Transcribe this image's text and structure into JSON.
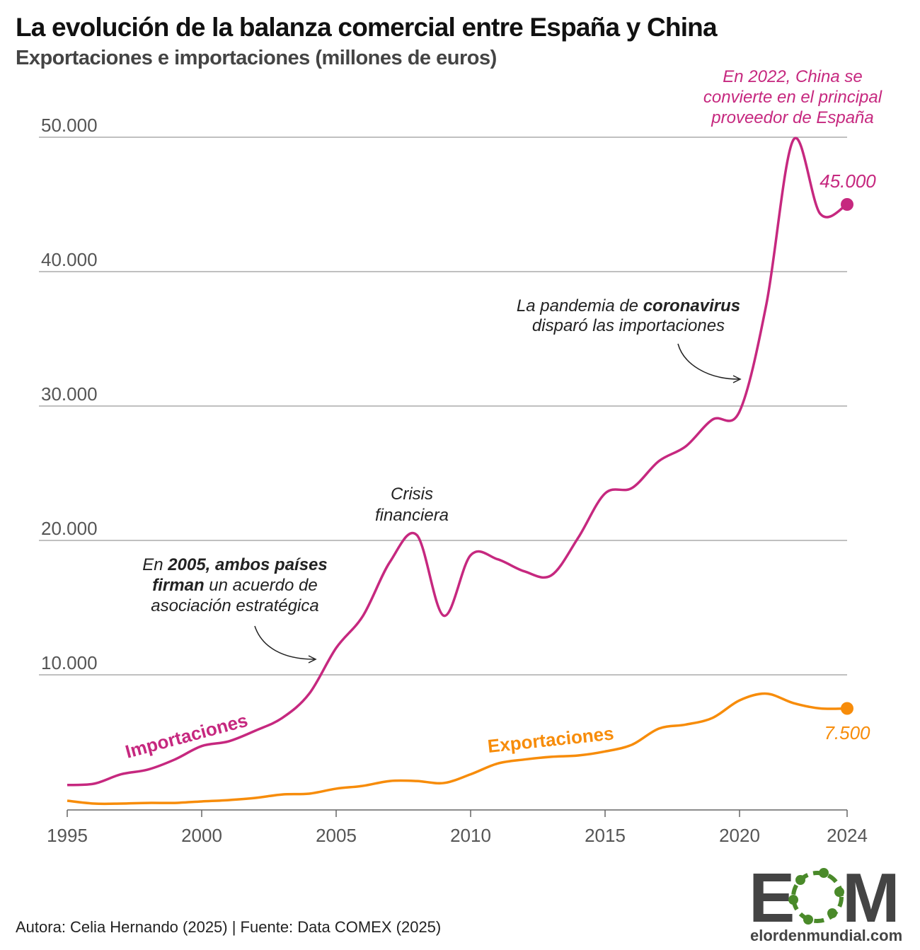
{
  "header": {
    "title": "La evolución de la balanza comercial entre España y China",
    "subtitle": "Exportaciones e importaciones (millones de euros)"
  },
  "footer": {
    "source": "Autora: Celia Hernando (2025) | Fuente: Data COMEX (2025)"
  },
  "logo": {
    "letters": "EOM",
    "site": "elordenmundial.com"
  },
  "colors": {
    "imports": "#c6287f",
    "exports": "#f78c0a",
    "grid": "#9a9a9a",
    "logo_gray": "#444444",
    "logo_green": "#4a8a2a"
  },
  "chart_data": {
    "type": "line",
    "title": "La evolución de la balanza comercial entre España y China",
    "subtitle": "Exportaciones e importaciones (millones de euros)",
    "xlabel": "",
    "ylabel": "",
    "xlim": [
      1995,
      2024
    ],
    "ylim": [
      0,
      50000
    ],
    "grid": true,
    "x_ticks": [
      "1995",
      "2000",
      "2005",
      "2010",
      "2015",
      "2020",
      "2024"
    ],
    "y_ticks": [
      "10.000",
      "20.000",
      "30.000",
      "40.000",
      "50.000"
    ],
    "x": [
      1995,
      1996,
      1997,
      1998,
      1999,
      2000,
      2001,
      2002,
      2003,
      2004,
      2005,
      2006,
      2007,
      2008,
      2009,
      2010,
      2011,
      2012,
      2013,
      2014,
      2015,
      2016,
      2017,
      2018,
      2019,
      2020,
      2021,
      2022,
      2023,
      2024
    ],
    "series": [
      {
        "name": "Importaciones",
        "end_label": "45.000",
        "values": [
          1800,
          1900,
          2600,
          2950,
          3700,
          4700,
          5050,
          5850,
          6800,
          8600,
          12000,
          14400,
          18400,
          20400,
          14400,
          18900,
          18600,
          17700,
          17400,
          20200,
          23500,
          23900,
          25900,
          27000,
          29000,
          29600,
          37600,
          49800,
          44300,
          45000
        ]
      },
      {
        "name": "Exportaciones",
        "end_label": "7.500",
        "values": [
          630,
          420,
          420,
          470,
          470,
          580,
          680,
          840,
          1100,
          1160,
          1530,
          1740,
          2100,
          2100,
          1950,
          2600,
          3400,
          3700,
          3900,
          4000,
          4300,
          4800,
          6000,
          6300,
          6800,
          8100,
          8600,
          7900,
          7500,
          7500
        ]
      }
    ],
    "annotations": {
      "agreement": {
        "l1a": "En ",
        "l1b": "2005, ambos países",
        "l2a": "firman",
        "l2b": " un acuerdo de",
        "l3": "asociación estratégica"
      },
      "crisis": {
        "l1": "Crisis",
        "l2": "financiera"
      },
      "pandemic": {
        "l1a": "La pandemia de ",
        "l1b": "coronavirus",
        "l2": "disparó las importaciones"
      },
      "supplier": {
        "l1": "En 2022, China se",
        "l2": "convierte en el principal",
        "l3": "proveedor de España"
      }
    }
  }
}
